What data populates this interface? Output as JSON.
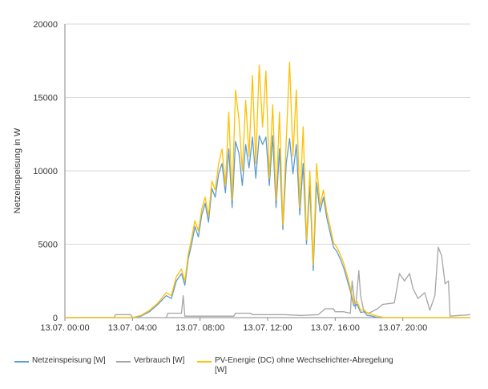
{
  "chart_data": {
    "type": "line",
    "title": "",
    "ylabel": "Netzeinspeisung in W",
    "xlabel": "",
    "ylim": [
      0,
      20000
    ],
    "yticks": [
      0,
      5000,
      10000,
      15000,
      20000
    ],
    "xlim": [
      0,
      24
    ],
    "xticks": [
      {
        "x": 0,
        "label": "13.07. 00:00"
      },
      {
        "x": 4,
        "label": "13.07. 04:00"
      },
      {
        "x": 8,
        "label": "13.07. 08:00"
      },
      {
        "x": 12,
        "label": "13.07. 12:00"
      },
      {
        "x": 16,
        "label": "13.07. 16:00"
      },
      {
        "x": 20,
        "label": "13.07. 20:00"
      }
    ],
    "grid": true,
    "legend_position": "bottom",
    "series": [
      {
        "name": "Netzeinspeisung [W]",
        "color": "#5b9bd5",
        "points": [
          [
            0,
            0
          ],
          [
            4.0,
            0
          ],
          [
            4.5,
            100
          ],
          [
            5.0,
            400
          ],
          [
            5.5,
            900
          ],
          [
            6.0,
            1500
          ],
          [
            6.3,
            1300
          ],
          [
            6.6,
            2500
          ],
          [
            6.9,
            3000
          ],
          [
            7.1,
            2200
          ],
          [
            7.3,
            4000
          ],
          [
            7.5,
            5000
          ],
          [
            7.7,
            6200
          ],
          [
            7.9,
            5500
          ],
          [
            8.1,
            7000
          ],
          [
            8.3,
            7800
          ],
          [
            8.5,
            6500
          ],
          [
            8.7,
            8800
          ],
          [
            8.9,
            8200
          ],
          [
            9.1,
            9800
          ],
          [
            9.3,
            10500
          ],
          [
            9.5,
            8500
          ],
          [
            9.7,
            11500
          ],
          [
            9.9,
            7500
          ],
          [
            10.1,
            12000
          ],
          [
            10.3,
            11200
          ],
          [
            10.5,
            9000
          ],
          [
            10.7,
            11800
          ],
          [
            10.9,
            10200
          ],
          [
            11.1,
            12300
          ],
          [
            11.3,
            9500
          ],
          [
            11.5,
            12400
          ],
          [
            11.7,
            11800
          ],
          [
            11.9,
            12300
          ],
          [
            12.1,
            9000
          ],
          [
            12.3,
            12400
          ],
          [
            12.5,
            7500
          ],
          [
            12.7,
            11500
          ],
          [
            12.9,
            6000
          ],
          [
            13.1,
            10500
          ],
          [
            13.3,
            12200
          ],
          [
            13.5,
            9800
          ],
          [
            13.7,
            11800
          ],
          [
            13.9,
            7000
          ],
          [
            14.1,
            10500
          ],
          [
            14.3,
            5000
          ],
          [
            14.5,
            9000
          ],
          [
            14.7,
            3200
          ],
          [
            14.9,
            9200
          ],
          [
            15.1,
            7200
          ],
          [
            15.3,
            8200
          ],
          [
            15.5,
            6800
          ],
          [
            15.7,
            5800
          ],
          [
            15.9,
            4800
          ],
          [
            16.1,
            4500
          ],
          [
            16.3,
            4000
          ],
          [
            16.5,
            3400
          ],
          [
            16.7,
            2600
          ],
          [
            16.9,
            1800
          ],
          [
            17.1,
            800
          ],
          [
            17.3,
            900
          ],
          [
            17.5,
            350
          ],
          [
            17.7,
            400
          ],
          [
            17.9,
            150
          ],
          [
            18.2,
            100
          ],
          [
            18.5,
            0
          ],
          [
            24,
            0
          ]
        ]
      },
      {
        "name": "Verbrauch [W]",
        "color": "#a5a5a5",
        "points": [
          [
            0,
            0
          ],
          [
            2.9,
            0
          ],
          [
            3.0,
            200
          ],
          [
            3.9,
            200
          ],
          [
            4.0,
            0
          ],
          [
            6.0,
            0
          ],
          [
            6.1,
            300
          ],
          [
            6.9,
            300
          ],
          [
            7.0,
            1500
          ],
          [
            7.1,
            100
          ],
          [
            7.5,
            100
          ],
          [
            10.0,
            100
          ],
          [
            10.1,
            300
          ],
          [
            11.0,
            300
          ],
          [
            11.1,
            200
          ],
          [
            12.0,
            200
          ],
          [
            13.0,
            200
          ],
          [
            14.0,
            150
          ],
          [
            15.0,
            200
          ],
          [
            15.4,
            600
          ],
          [
            15.9,
            600
          ],
          [
            16.0,
            400
          ],
          [
            16.5,
            400
          ],
          [
            16.9,
            300
          ],
          [
            17.0,
            2500
          ],
          [
            17.2,
            600
          ],
          [
            17.4,
            3200
          ],
          [
            17.5,
            1500
          ],
          [
            17.7,
            400
          ],
          [
            18.0,
            300
          ],
          [
            18.5,
            600
          ],
          [
            18.8,
            900
          ],
          [
            19.5,
            1000
          ],
          [
            19.8,
            3000
          ],
          [
            20.1,
            2500
          ],
          [
            20.4,
            3000
          ],
          [
            20.6,
            2000
          ],
          [
            20.9,
            1300
          ],
          [
            21.3,
            1700
          ],
          [
            21.6,
            500
          ],
          [
            21.9,
            1500
          ],
          [
            22.1,
            4800
          ],
          [
            22.3,
            4200
          ],
          [
            22.5,
            2300
          ],
          [
            22.7,
            2500
          ],
          [
            22.8,
            100
          ],
          [
            24,
            200
          ]
        ]
      },
      {
        "name": "PV-Energie (DC) ohne Wechselrichter-Abregelung [W]",
        "color": "#ffc000",
        "points": [
          [
            0,
            0
          ],
          [
            4.0,
            0
          ],
          [
            4.5,
            150
          ],
          [
            5.0,
            500
          ],
          [
            5.5,
            1000
          ],
          [
            6.0,
            1700
          ],
          [
            6.3,
            1500
          ],
          [
            6.6,
            2800
          ],
          [
            6.9,
            3300
          ],
          [
            7.1,
            2500
          ],
          [
            7.3,
            4300
          ],
          [
            7.5,
            5400
          ],
          [
            7.7,
            6600
          ],
          [
            7.9,
            5900
          ],
          [
            8.1,
            7400
          ],
          [
            8.3,
            8200
          ],
          [
            8.5,
            6900
          ],
          [
            8.7,
            9300
          ],
          [
            8.9,
            8700
          ],
          [
            9.1,
            10500
          ],
          [
            9.3,
            11500
          ],
          [
            9.5,
            9000
          ],
          [
            9.7,
            14000
          ],
          [
            9.9,
            8000
          ],
          [
            10.1,
            15500
          ],
          [
            10.3,
            13500
          ],
          [
            10.5,
            10000
          ],
          [
            10.7,
            14800
          ],
          [
            10.9,
            11000
          ],
          [
            11.1,
            16500
          ],
          [
            11.3,
            10500
          ],
          [
            11.5,
            17200
          ],
          [
            11.7,
            13000
          ],
          [
            11.9,
            16800
          ],
          [
            12.1,
            9500
          ],
          [
            12.3,
            14500
          ],
          [
            12.5,
            8000
          ],
          [
            12.7,
            14000
          ],
          [
            12.9,
            6300
          ],
          [
            13.1,
            12000
          ],
          [
            13.3,
            17400
          ],
          [
            13.5,
            11000
          ],
          [
            13.7,
            15500
          ],
          [
            13.9,
            7500
          ],
          [
            14.1,
            13000
          ],
          [
            14.3,
            5300
          ],
          [
            14.5,
            10000
          ],
          [
            14.7,
            3600
          ],
          [
            14.9,
            10500
          ],
          [
            15.1,
            7600
          ],
          [
            15.3,
            8700
          ],
          [
            15.5,
            7200
          ],
          [
            15.7,
            6200
          ],
          [
            15.9,
            5100
          ],
          [
            16.1,
            4800
          ],
          [
            16.3,
            4300
          ],
          [
            16.5,
            3700
          ],
          [
            16.7,
            2900
          ],
          [
            16.9,
            2000
          ],
          [
            17.1,
            1000
          ],
          [
            17.3,
            1100
          ],
          [
            17.5,
            500
          ],
          [
            17.7,
            550
          ],
          [
            17.9,
            300
          ],
          [
            18.2,
            200
          ],
          [
            18.5,
            100
          ],
          [
            18.9,
            0
          ],
          [
            24,
            0
          ]
        ]
      }
    ]
  }
}
